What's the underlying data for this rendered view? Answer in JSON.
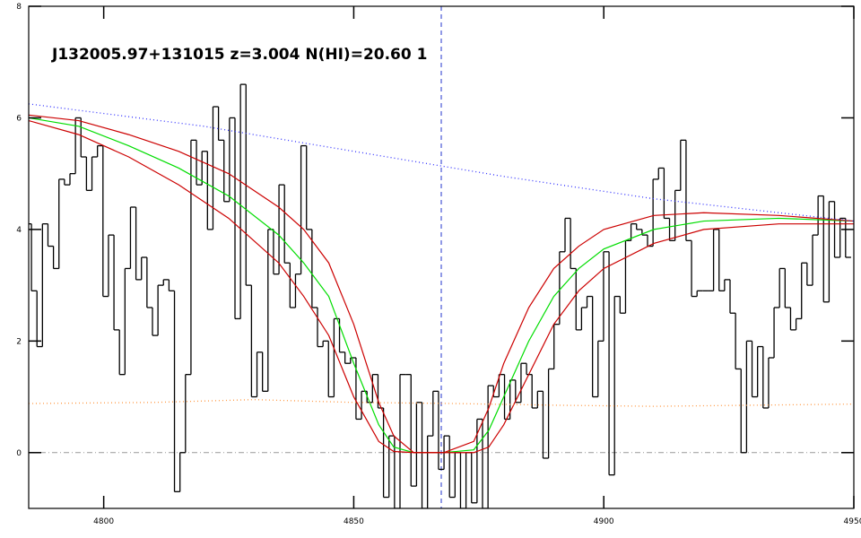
{
  "chart_data": {
    "type": "line",
    "title": "J132005.97+131015 z=3.004 N(HI)=20.60 1",
    "xlim": [
      4785,
      4950
    ],
    "ylim": [
      -1,
      8
    ],
    "xticks": [
      4800,
      4850,
      4900,
      4950
    ],
    "yticks": [
      0,
      2,
      4,
      6,
      8
    ],
    "hline": 0,
    "vline": 4867.5,
    "series": [
      {
        "style": "steps",
        "color": "#000000",
        "x": [
          4785.0,
          4786.1,
          4787.2,
          4788.3,
          4789.4,
          4790.5,
          4791.6,
          4792.7,
          4793.8,
          4794.9,
          4796.0,
          4797.1,
          4798.2,
          4799.3,
          4800.4,
          4801.5,
          4802.6,
          4803.7,
          4804.8,
          4805.9,
          4807.0,
          4808.1,
          4809.2,
          4810.3,
          4811.4,
          4812.5,
          4813.6,
          4814.7,
          4815.8,
          4816.9,
          4818.0,
          4819.1,
          4820.2,
          4821.3,
          4822.4,
          4823.5,
          4824.6,
          4825.7,
          4826.8,
          4827.9,
          4829.0,
          4830.1,
          4831.2,
          4832.3,
          4833.4,
          4834.5,
          4835.6,
          4836.7,
          4837.8,
          4838.9,
          4840.0,
          4841.1,
          4842.2,
          4843.3,
          4844.4,
          4845.5,
          4846.6,
          4847.7,
          4848.8,
          4849.9,
          4851.0,
          4852.1,
          4853.2,
          4854.3,
          4855.4,
          4856.5,
          4857.6,
          4858.7,
          4859.8,
          4860.9,
          4862.0,
          4863.1,
          4864.2,
          4865.3,
          4866.4,
          4867.5,
          4868.6,
          4869.7,
          4870.8,
          4871.9,
          4873.0,
          4874.1,
          4875.2,
          4876.3,
          4877.4,
          4878.5,
          4879.6,
          4880.7,
          4881.8,
          4882.9,
          4884.0,
          4885.1,
          4886.2,
          4887.3,
          4888.4,
          4889.5,
          4890.6,
          4891.7,
          4892.8,
          4893.9,
          4895.0,
          4896.1,
          4897.2,
          4898.3,
          4899.4,
          4900.5,
          4901.6,
          4902.7,
          4903.8,
          4904.9,
          4906.0,
          4907.1,
          4908.2,
          4909.3,
          4910.4,
          4911.5,
          4912.6,
          4913.7,
          4914.8,
          4915.9,
          4917.0,
          4918.1,
          4919.2,
          4920.3,
          4921.4,
          4922.5,
          4923.6,
          4924.7,
          4925.8,
          4926.9,
          4928.0,
          4929.1,
          4930.2,
          4931.3,
          4932.4,
          4933.5,
          4934.6,
          4935.7,
          4936.8,
          4937.9,
          4939.0,
          4940.1,
          4941.2,
          4942.3,
          4943.4,
          4944.5,
          4945.6,
          4946.7,
          4947.8,
          4948.9
        ],
        "values": [
          4.1,
          2.9,
          1.9,
          4.1,
          3.7,
          3.3,
          4.9,
          4.8,
          5.0,
          6.0,
          5.3,
          4.7,
          5.3,
          5.5,
          2.8,
          3.9,
          2.2,
          1.4,
          3.3,
          4.4,
          3.1,
          3.5,
          2.6,
          2.1,
          3.0,
          3.1,
          2.9,
          -0.7,
          0,
          1.4,
          5.6,
          4.8,
          5.4,
          4.0,
          6.2,
          5.6,
          4.5,
          6.0,
          2.4,
          6.6,
          3.0,
          1.0,
          1.8,
          1.1,
          4.0,
          3.2,
          4.8,
          3.4,
          2.6,
          3.2,
          5.5,
          4.0,
          2.6,
          1.9,
          2.0,
          1.0,
          2.4,
          1.8,
          1.6,
          1.7,
          0.6,
          1.1,
          0.9,
          1.4,
          0.8,
          -0.8,
          0.3,
          -1.0,
          1.4,
          1.4,
          -0.6,
          0.9,
          -1.0,
          0.3,
          1.1,
          -0.3,
          0.3,
          -0.8,
          0,
          -1.0,
          0,
          -0.9,
          0.6,
          -1.0,
          1.2,
          1.0,
          1.4,
          0.6,
          1.3,
          0.9,
          1.6,
          1.4,
          0.8,
          1.1,
          -0.1,
          1.5,
          2.3,
          3.6,
          4.2,
          3.3,
          2.2,
          2.6,
          2.8,
          1.0,
          2.0,
          3.6,
          -0.4,
          2.8,
          2.5,
          3.8,
          4.1,
          4.0,
          3.9,
          3.7,
          4.9,
          5.1,
          4.2,
          3.8,
          4.7,
          5.6,
          3.8,
          2.8,
          2.9,
          2.9,
          2.9,
          4.0,
          2.9,
          3.1,
          2.5,
          1.5,
          0,
          2.0,
          1.0,
          1.9,
          0.8,
          1.7,
          2.6,
          3.3,
          2.6,
          2.2,
          2.4,
          3.4,
          3.0,
          3.9,
          4.6,
          2.7,
          4.5,
          3.5,
          4.2,
          3.5
        ]
      },
      {
        "style": "solid",
        "color": "#00dd00",
        "x": [
          4785,
          4795,
          4805,
          4815,
          4825,
          4835,
          4840,
          4845,
          4850,
          4855,
          4858,
          4862,
          4868,
          4874,
          4877,
          4880,
          4885,
          4890,
          4895,
          4900,
          4910,
          4920,
          4935,
          4950
        ],
        "values": [
          6.0,
          5.85,
          5.5,
          5.1,
          4.6,
          3.9,
          3.4,
          2.8,
          1.6,
          0.5,
          0.1,
          0,
          0,
          0.05,
          0.4,
          1.0,
          2.0,
          2.8,
          3.3,
          3.65,
          4.0,
          4.15,
          4.2,
          4.15
        ]
      },
      {
        "style": "solid",
        "color": "#cc0000",
        "x": [
          4785,
          4795,
          4805,
          4815,
          4825,
          4835,
          4840,
          4845,
          4850,
          4855,
          4858,
          4862,
          4868,
          4874,
          4877,
          4880,
          4885,
          4890,
          4895,
          4900,
          4910,
          4920,
          4935,
          4950
        ],
        "values": [
          6.05,
          5.95,
          5.7,
          5.4,
          5.0,
          4.4,
          4.0,
          3.4,
          2.3,
          0.9,
          0.3,
          0,
          0,
          0.2,
          0.8,
          1.6,
          2.6,
          3.3,
          3.7,
          4.0,
          4.25,
          4.3,
          4.25,
          4.15
        ]
      },
      {
        "style": "solid",
        "color": "#cc0000",
        "x": [
          4785,
          4795,
          4805,
          4815,
          4825,
          4835,
          4840,
          4845,
          4850,
          4855,
          4858,
          4862,
          4868,
          4874,
          4877,
          4880,
          4885,
          4890,
          4895,
          4900,
          4910,
          4920,
          4935,
          4950
        ],
        "values": [
          5.95,
          5.7,
          5.3,
          4.8,
          4.2,
          3.4,
          2.8,
          2.1,
          1.0,
          0.2,
          0.02,
          0,
          0,
          0,
          0.1,
          0.5,
          1.4,
          2.3,
          2.9,
          3.3,
          3.75,
          4.0,
          4.1,
          4.1
        ]
      },
      {
        "style": "dotted",
        "color": "#3333ff",
        "x": [
          4785,
          4820,
          4850,
          4880,
          4910,
          4950
        ],
        "values": [
          6.25,
          5.85,
          5.4,
          4.95,
          4.55,
          4.15
        ]
      },
      {
        "style": "dotted",
        "color": "#ff9944",
        "x": [
          4785,
          4810,
          4830,
          4850,
          4870,
          4890,
          4910,
          4930,
          4950
        ],
        "values": [
          0.88,
          0.9,
          0.95,
          0.9,
          0.88,
          0.85,
          0.83,
          0.85,
          0.87
        ]
      }
    ]
  }
}
